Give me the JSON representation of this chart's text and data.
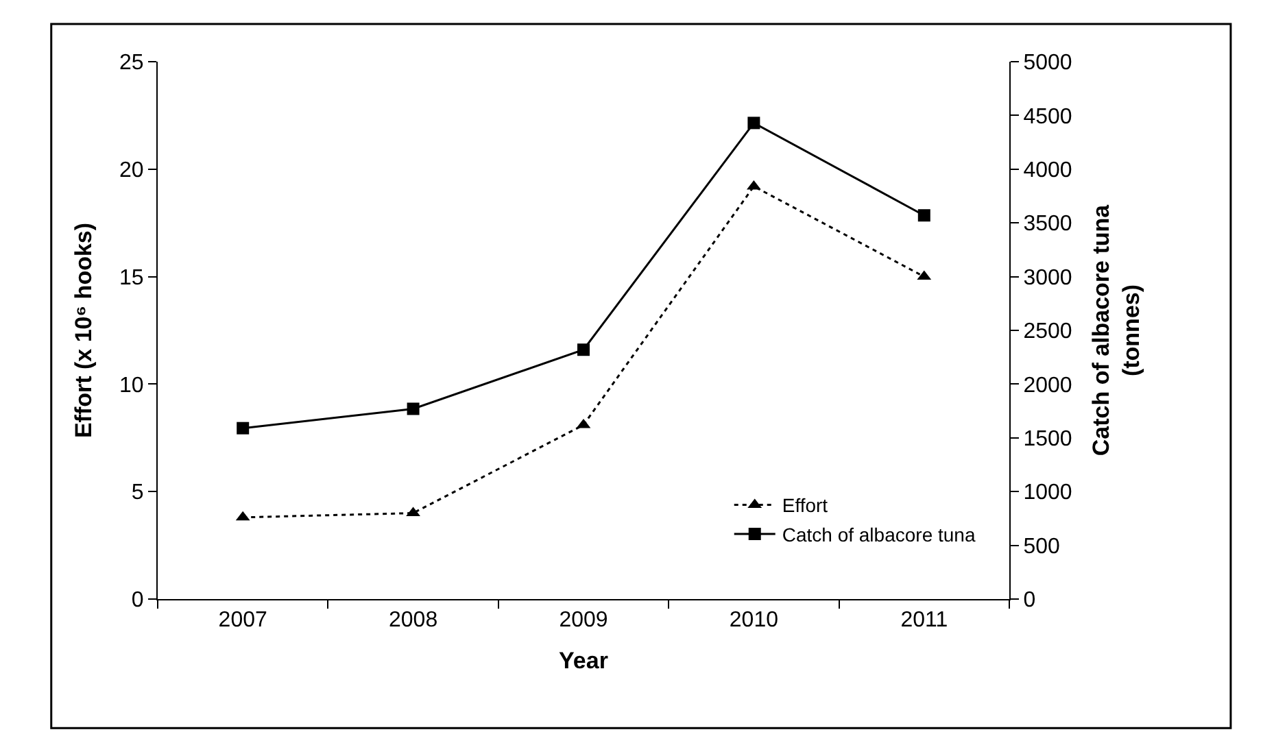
{
  "chart_data": {
    "type": "line",
    "xlabel": "Year",
    "ylabel": "Effort (x 10⁶ hooks)",
    "y2label": "Catch of albacore tuna\n(tonnes)",
    "categories": [
      "2007",
      "2008",
      "2009",
      "2010",
      "2011"
    ],
    "series": [
      {
        "name": "Effort",
        "color": "#000000",
        "values": [
          3.8,
          4.0,
          8.1,
          19.2,
          15.0
        ],
        "marker": "triangle",
        "line_style": "dotted"
      },
      {
        "name": "Catch of albacore tuna",
        "color": "#000000",
        "values": [
          1590,
          1770,
          2320,
          4430,
          3570
        ],
        "marker": "square",
        "line_style": "solid",
        "axis": "y2"
      }
    ],
    "ylim": [
      0,
      25
    ],
    "yticks": [
      0,
      5,
      10,
      15,
      20,
      25
    ],
    "y2lim": [
      0,
      5000
    ],
    "y2ticks": [
      0,
      500,
      1000,
      1500,
      2000,
      2500,
      3000,
      3500,
      4000,
      4500,
      5000
    ],
    "legend": "bottom right"
  }
}
